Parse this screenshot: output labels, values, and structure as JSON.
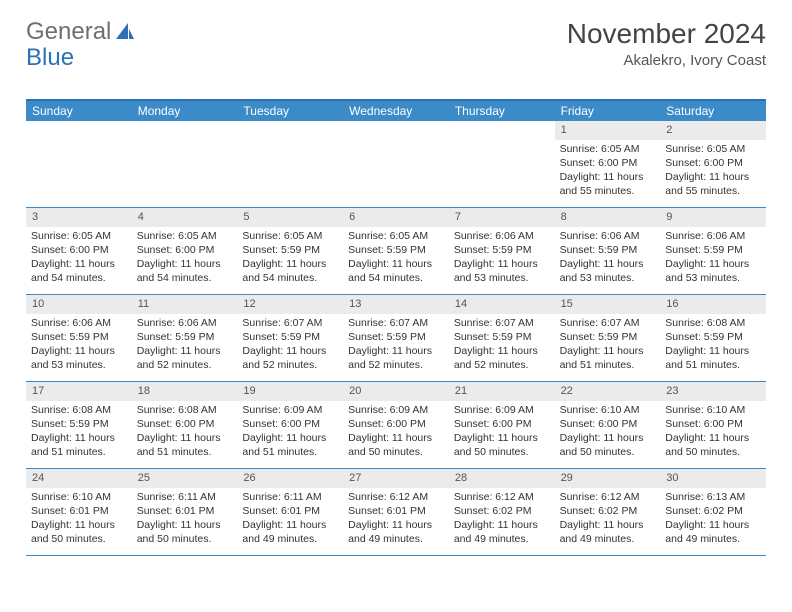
{
  "logo": {
    "part1": "General",
    "part2": "Blue"
  },
  "title": "November 2024",
  "subtitle": "Akalekro, Ivory Coast",
  "header_bg": "#3b8bc9",
  "border_color": "#2f6fb3",
  "daynum_bg": "#ebebeb",
  "dow": [
    "Sunday",
    "Monday",
    "Tuesday",
    "Wednesday",
    "Thursday",
    "Friday",
    "Saturday"
  ],
  "weeks": [
    [
      null,
      null,
      null,
      null,
      null,
      {
        "n": "1",
        "sr": "Sunrise: 6:05 AM",
        "ss": "Sunset: 6:00 PM",
        "dl": "Daylight: 11 hours and 55 minutes."
      },
      {
        "n": "2",
        "sr": "Sunrise: 6:05 AM",
        "ss": "Sunset: 6:00 PM",
        "dl": "Daylight: 11 hours and 55 minutes."
      }
    ],
    [
      {
        "n": "3",
        "sr": "Sunrise: 6:05 AM",
        "ss": "Sunset: 6:00 PM",
        "dl": "Daylight: 11 hours and 54 minutes."
      },
      {
        "n": "4",
        "sr": "Sunrise: 6:05 AM",
        "ss": "Sunset: 6:00 PM",
        "dl": "Daylight: 11 hours and 54 minutes."
      },
      {
        "n": "5",
        "sr": "Sunrise: 6:05 AM",
        "ss": "Sunset: 5:59 PM",
        "dl": "Daylight: 11 hours and 54 minutes."
      },
      {
        "n": "6",
        "sr": "Sunrise: 6:05 AM",
        "ss": "Sunset: 5:59 PM",
        "dl": "Daylight: 11 hours and 54 minutes."
      },
      {
        "n": "7",
        "sr": "Sunrise: 6:06 AM",
        "ss": "Sunset: 5:59 PM",
        "dl": "Daylight: 11 hours and 53 minutes."
      },
      {
        "n": "8",
        "sr": "Sunrise: 6:06 AM",
        "ss": "Sunset: 5:59 PM",
        "dl": "Daylight: 11 hours and 53 minutes."
      },
      {
        "n": "9",
        "sr": "Sunrise: 6:06 AM",
        "ss": "Sunset: 5:59 PM",
        "dl": "Daylight: 11 hours and 53 minutes."
      }
    ],
    [
      {
        "n": "10",
        "sr": "Sunrise: 6:06 AM",
        "ss": "Sunset: 5:59 PM",
        "dl": "Daylight: 11 hours and 53 minutes."
      },
      {
        "n": "11",
        "sr": "Sunrise: 6:06 AM",
        "ss": "Sunset: 5:59 PM",
        "dl": "Daylight: 11 hours and 52 minutes."
      },
      {
        "n": "12",
        "sr": "Sunrise: 6:07 AM",
        "ss": "Sunset: 5:59 PM",
        "dl": "Daylight: 11 hours and 52 minutes."
      },
      {
        "n": "13",
        "sr": "Sunrise: 6:07 AM",
        "ss": "Sunset: 5:59 PM",
        "dl": "Daylight: 11 hours and 52 minutes."
      },
      {
        "n": "14",
        "sr": "Sunrise: 6:07 AM",
        "ss": "Sunset: 5:59 PM",
        "dl": "Daylight: 11 hours and 52 minutes."
      },
      {
        "n": "15",
        "sr": "Sunrise: 6:07 AM",
        "ss": "Sunset: 5:59 PM",
        "dl": "Daylight: 11 hours and 51 minutes."
      },
      {
        "n": "16",
        "sr": "Sunrise: 6:08 AM",
        "ss": "Sunset: 5:59 PM",
        "dl": "Daylight: 11 hours and 51 minutes."
      }
    ],
    [
      {
        "n": "17",
        "sr": "Sunrise: 6:08 AM",
        "ss": "Sunset: 5:59 PM",
        "dl": "Daylight: 11 hours and 51 minutes."
      },
      {
        "n": "18",
        "sr": "Sunrise: 6:08 AM",
        "ss": "Sunset: 6:00 PM",
        "dl": "Daylight: 11 hours and 51 minutes."
      },
      {
        "n": "19",
        "sr": "Sunrise: 6:09 AM",
        "ss": "Sunset: 6:00 PM",
        "dl": "Daylight: 11 hours and 51 minutes."
      },
      {
        "n": "20",
        "sr": "Sunrise: 6:09 AM",
        "ss": "Sunset: 6:00 PM",
        "dl": "Daylight: 11 hours and 50 minutes."
      },
      {
        "n": "21",
        "sr": "Sunrise: 6:09 AM",
        "ss": "Sunset: 6:00 PM",
        "dl": "Daylight: 11 hours and 50 minutes."
      },
      {
        "n": "22",
        "sr": "Sunrise: 6:10 AM",
        "ss": "Sunset: 6:00 PM",
        "dl": "Daylight: 11 hours and 50 minutes."
      },
      {
        "n": "23",
        "sr": "Sunrise: 6:10 AM",
        "ss": "Sunset: 6:00 PM",
        "dl": "Daylight: 11 hours and 50 minutes."
      }
    ],
    [
      {
        "n": "24",
        "sr": "Sunrise: 6:10 AM",
        "ss": "Sunset: 6:01 PM",
        "dl": "Daylight: 11 hours and 50 minutes."
      },
      {
        "n": "25",
        "sr": "Sunrise: 6:11 AM",
        "ss": "Sunset: 6:01 PM",
        "dl": "Daylight: 11 hours and 50 minutes."
      },
      {
        "n": "26",
        "sr": "Sunrise: 6:11 AM",
        "ss": "Sunset: 6:01 PM",
        "dl": "Daylight: 11 hours and 49 minutes."
      },
      {
        "n": "27",
        "sr": "Sunrise: 6:12 AM",
        "ss": "Sunset: 6:01 PM",
        "dl": "Daylight: 11 hours and 49 minutes."
      },
      {
        "n": "28",
        "sr": "Sunrise: 6:12 AM",
        "ss": "Sunset: 6:02 PM",
        "dl": "Daylight: 11 hours and 49 minutes."
      },
      {
        "n": "29",
        "sr": "Sunrise: 6:12 AM",
        "ss": "Sunset: 6:02 PM",
        "dl": "Daylight: 11 hours and 49 minutes."
      },
      {
        "n": "30",
        "sr": "Sunrise: 6:13 AM",
        "ss": "Sunset: 6:02 PM",
        "dl": "Daylight: 11 hours and 49 minutes."
      }
    ]
  ]
}
